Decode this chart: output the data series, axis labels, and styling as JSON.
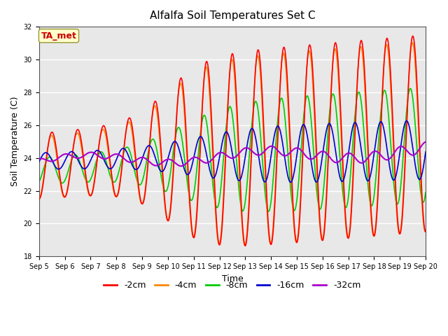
{
  "title": "Alfalfa Soil Temperatures Set C",
  "xlabel": "Time",
  "ylabel": "Soil Temperature (C)",
  "ylim": [
    18,
    32
  ],
  "yticks": [
    18,
    20,
    22,
    24,
    26,
    28,
    30,
    32
  ],
  "colors": {
    "-2cm": "#ff0000",
    "-4cm": "#ff8800",
    "-8cm": "#00cc00",
    "-16cm": "#0000cc",
    "-32cm": "#aa00cc"
  },
  "legend_labels": [
    "-2cm",
    "-4cm",
    "-8cm",
    "-16cm",
    "-32cm"
  ],
  "annotation_text": "TA_met",
  "annotation_bg": "#ffffcc",
  "annotation_border": "#999933",
  "annotation_textcolor": "#cc0000",
  "bg_color": "#e8e8e8",
  "n_days": 15,
  "start_day": 5,
  "points_per_day": 48
}
